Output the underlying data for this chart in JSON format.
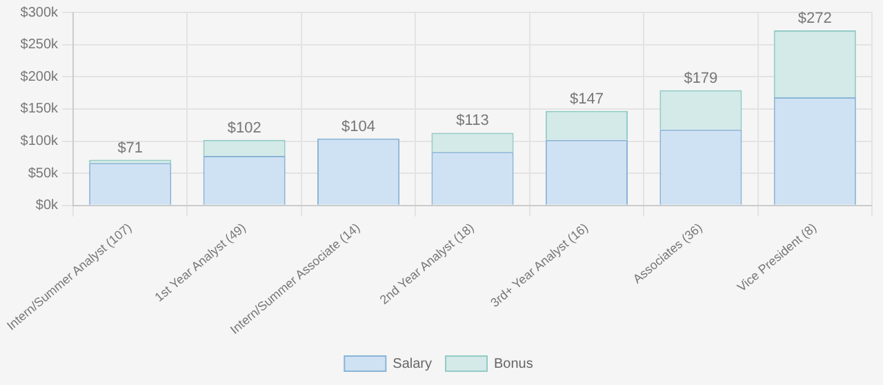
{
  "chart_data": {
    "type": "bar",
    "stacked": true,
    "categories": [
      "Intern/Summer Analyst (107)",
      "1st Year Analyst (49)",
      "Intern/Summer Associate (14)",
      "2nd Year Analyst (18)",
      "3rd+ Year Analyst (16)",
      "Associates (36)",
      "Vice President (8)"
    ],
    "series": [
      {
        "name": "Salary",
        "color": "#cfe2f3",
        "values": [
          66,
          77,
          104,
          83,
          102,
          118,
          168
        ]
      },
      {
        "name": "Bonus",
        "color": "#d3eae8",
        "values": [
          5,
          25,
          0,
          30,
          45,
          61,
          104
        ]
      }
    ],
    "totals": [
      "$71",
      "$102",
      "$104",
      "$113",
      "$147",
      "$179",
      "$272"
    ],
    "ylim": [
      0,
      300
    ],
    "yticks": [
      {
        "value": 0,
        "label": "$0k"
      },
      {
        "value": 50,
        "label": "$50k"
      },
      {
        "value": 100,
        "label": "$100k"
      },
      {
        "value": 150,
        "label": "$150k"
      },
      {
        "value": 200,
        "label": "$200k"
      },
      {
        "value": 250,
        "label": "$250k"
      },
      {
        "value": 300,
        "label": "$300k"
      }
    ],
    "grid": true,
    "legend": "bottom"
  }
}
